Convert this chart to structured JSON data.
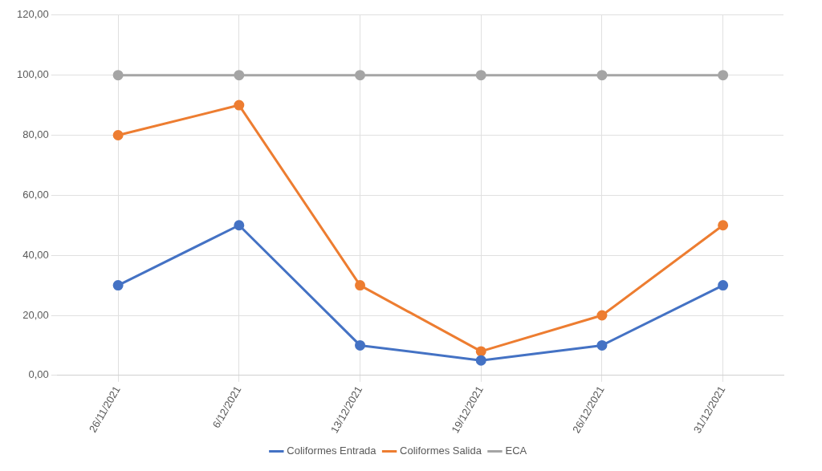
{
  "chart_data": {
    "type": "line",
    "categories": [
      "26/11/2021",
      "6/12/2021",
      "13/12/2021",
      "19/12/2021",
      "26/12/2021",
      "31/12/2021"
    ],
    "series": [
      {
        "name": "Coliformes Entrada",
        "color": "#4472c4",
        "values": [
          30,
          50,
          10,
          5,
          10,
          30
        ]
      },
      {
        "name": "Coliformes Salida",
        "color": "#ed7d31",
        "values": [
          80,
          90,
          30,
          8,
          20,
          50
        ]
      },
      {
        "name": "ECA",
        "color": "#a5a5a5",
        "values": [
          100,
          100,
          100,
          100,
          100,
          100
        ]
      }
    ],
    "ylim": [
      0,
      120
    ],
    "yticks": [
      {
        "value": 0,
        "label": "0,00"
      },
      {
        "value": 20,
        "label": "20,00"
      },
      {
        "value": 40,
        "label": "40,00"
      },
      {
        "value": 60,
        "label": "60,00"
      },
      {
        "value": 80,
        "label": "80,00"
      },
      {
        "value": 100,
        "label": "100,00"
      },
      {
        "value": 120,
        "label": "120,00"
      }
    ],
    "grid": true,
    "legend": "bottom",
    "marker": "circle",
    "line_style": "solid"
  }
}
